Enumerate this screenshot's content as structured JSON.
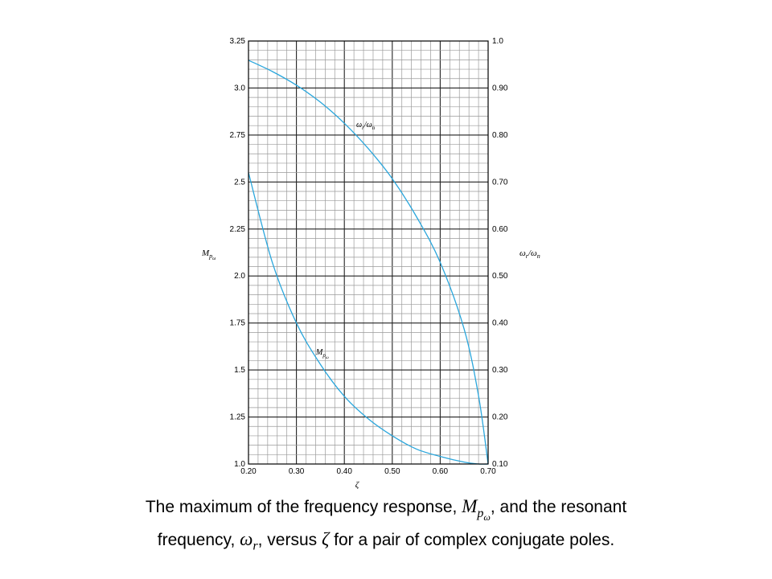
{
  "chart_data": {
    "type": "line",
    "x": [
      0.2,
      0.25,
      0.3,
      0.35,
      0.4,
      0.45,
      0.5,
      0.55,
      0.6,
      0.65,
      0.68,
      0.7
    ],
    "series": [
      {
        "name": "M_{pω}",
        "axis": "left",
        "display": {
          "base": "M",
          "sub": "p",
          "subsub": "ω"
        },
        "values": [
          2.55,
          2.07,
          1.75,
          1.53,
          1.36,
          1.24,
          1.15,
          1.08,
          1.04,
          1.01,
          1.0,
          1.0
        ],
        "color": "#2aa6dc"
      },
      {
        "name": "ω_r/ω_n",
        "axis": "right",
        "display": {
          "base": "ω",
          "sub": "r",
          "mid": "/ω",
          "sub2": "n"
        },
        "values": [
          0.959,
          0.935,
          0.906,
          0.87,
          0.825,
          0.771,
          0.707,
          0.627,
          0.529,
          0.387,
          0.245,
          0.1
        ],
        "color": "#2aa6dc"
      }
    ],
    "xlabel": "ζ",
    "ylabel_left": {
      "base": "M",
      "sub": "p",
      "subsub": "ω"
    },
    "ylabel_right": {
      "base": "ω",
      "sub": "r",
      "mid": "/ω",
      "sub2": "n"
    },
    "x_ticks": [
      "0.20",
      "0.30",
      "0.40",
      "0.50",
      "0.60",
      "0.70"
    ],
    "x_tick_values": [
      0.2,
      0.3,
      0.4,
      0.5,
      0.6,
      0.7
    ],
    "left_ticks": [
      "1.0",
      "1.25",
      "1.5",
      "1.75",
      "2.0",
      "2.25",
      "2.5",
      "2.75",
      "3.0",
      "3.25"
    ],
    "left_tick_values": [
      1.0,
      1.25,
      1.5,
      1.75,
      2.0,
      2.25,
      2.5,
      2.75,
      3.0,
      3.25
    ],
    "right_ticks": [
      "0.10",
      "0.20",
      "0.30",
      "0.40",
      "0.50",
      "0.60",
      "0.70",
      "0.80",
      "0.90",
      "1.0"
    ],
    "right_tick_values": [
      0.1,
      0.2,
      0.3,
      0.4,
      0.5,
      0.6,
      0.7,
      0.8,
      0.9,
      1.0
    ],
    "xlim": [
      0.2,
      0.7
    ],
    "ylim_left": [
      1.0,
      3.25
    ],
    "ylim_right": [
      0.1,
      1.0
    ],
    "grid": true
  },
  "caption": {
    "line1_a": "The maximum of the frequency response,",
    "line1_sym": "M",
    "line1_sub": "p",
    "line1_subsub": "ω",
    "line1_b": ", and the resonant",
    "line2_a": "frequency,",
    "line2_sym": "ω",
    "line2_sub": "r",
    "line2_b": ", versus",
    "line2_zeta": "ζ",
    "line2_c": "for a pair of complex conjugate poles."
  }
}
